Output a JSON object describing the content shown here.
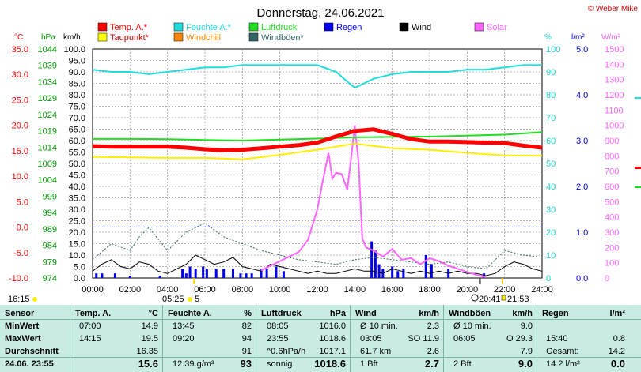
{
  "title": "Donnerstag, 24.06.2021",
  "copyright": "© Weber Mike",
  "legend": [
    {
      "label": "Temp. A.*",
      "color": "#ff0000"
    },
    {
      "label": "Feuchte A.*",
      "color": "#22dddd"
    },
    {
      "label": "Luftdruck",
      "color": "#22dd22"
    },
    {
      "label": "Regen",
      "color": "#0000ee"
    },
    {
      "label": "Wind",
      "color": "#000000"
    },
    {
      "label": "Solar",
      "color": "#ff66ff"
    },
    {
      "label": "Taupunkt*",
      "color": "#ffff00"
    },
    {
      "label": "Windchill",
      "color": "#ff8800"
    },
    {
      "label": "Windböen*",
      "color": "#336666"
    }
  ],
  "chart_data": {
    "type": "line",
    "x_ticks": [
      "00:00",
      "02:00",
      "04:00",
      "06:00",
      "08:00",
      "10:00",
      "12:00",
      "14:00",
      "16:00",
      "18:00",
      "20:00",
      "22:00",
      "24:00"
    ],
    "axes": {
      "temp": {
        "unit": "°C",
        "color": "#ff0000",
        "ticks": [
          "35.0",
          "30.0",
          "25.0",
          "20.0",
          "15.0",
          "10.0",
          "5.0",
          "0.0",
          "-5.0",
          "-10.0"
        ],
        "range": [
          -10,
          35
        ]
      },
      "press": {
        "unit": "hPa",
        "color": "#009900",
        "ticks": [
          "1044",
          "1039",
          "1034",
          "1029",
          "1024",
          "1019",
          "1014",
          "1009",
          "1004",
          "999",
          "994",
          "989",
          "984",
          "979",
          "974"
        ],
        "range": [
          974,
          1044
        ]
      },
      "wind": {
        "unit": "km/h",
        "color": "#000000",
        "ticks": [
          "100.0",
          "95.0",
          "90.0",
          "85.0",
          "80.0",
          "75.0",
          "70.0",
          "65.0",
          "60.0",
          "55.0",
          "50.0",
          "45.0",
          "40.0",
          "35.0",
          "30.0",
          "25.0",
          "20.0",
          "15.0",
          "10.0",
          "5.0",
          "0.0"
        ],
        "range": [
          0,
          100
        ]
      },
      "hum": {
        "unit": "%",
        "color": "#22cccc",
        "ticks": [
          "100",
          "90",
          "80",
          "70",
          "60",
          "50",
          "40",
          "30",
          "20",
          "10",
          "0"
        ],
        "range": [
          0,
          100
        ]
      },
      "rain": {
        "unit": "l/m²",
        "color": "#0000cc",
        "ticks": [
          "5.0",
          "4.0",
          "3.0",
          "2.0",
          "1.0",
          "0.0"
        ],
        "range": [
          0,
          5
        ]
      },
      "solar": {
        "unit": "W/m²",
        "color": "#ff66ff",
        "ticks": [
          "1500",
          "1400",
          "1300",
          "1200",
          "1100",
          "1000",
          "900",
          "800",
          "700",
          "600",
          "500",
          "400",
          "300",
          "200",
          "100",
          "0"
        ],
        "range": [
          0,
          1500
        ]
      }
    },
    "series": [
      {
        "name": "Temp. A.*",
        "axis": "temp",
        "x": [
          0,
          1,
          2,
          3,
          4,
          5,
          6,
          7,
          8,
          9,
          10,
          11,
          12,
          13,
          14,
          15,
          16,
          17,
          18,
          19,
          20,
          21,
          22,
          23,
          24
        ],
        "y": [
          15.9,
          15.8,
          15.8,
          15.8,
          15.8,
          15.6,
          15.3,
          15.1,
          15.2,
          15.5,
          15.8,
          16.1,
          16.6,
          17.8,
          18.9,
          19.2,
          18.3,
          17.3,
          16.8,
          16.8,
          16.7,
          16.6,
          16.5,
          16.0,
          15.6
        ]
      },
      {
        "name": "Feuchte A.*",
        "axis": "hum",
        "x": [
          0,
          1,
          2,
          3,
          4,
          5,
          6,
          7,
          8,
          9,
          10,
          11,
          12,
          13,
          14,
          15,
          16,
          17,
          18,
          19,
          20,
          21,
          22,
          23,
          24
        ],
        "y": [
          91,
          90,
          90,
          89,
          90,
          91,
          92,
          92,
          93,
          93,
          93,
          93,
          93,
          90,
          83,
          87,
          89,
          90,
          90,
          90,
          91,
          91,
          92,
          93,
          93
        ],
        "dashed": true
      },
      {
        "name": "Luftdruck",
        "axis": "press",
        "x": [
          0,
          2,
          4,
          6,
          8,
          10,
          12,
          14,
          16,
          18,
          20,
          22,
          24
        ],
        "y": [
          1016.5,
          1016.5,
          1016.4,
          1016.2,
          1016.0,
          1016.3,
          1016.6,
          1017.0,
          1017.1,
          1017.2,
          1017.5,
          1017.8,
          1018.6
        ]
      },
      {
        "name": "Taupunkt*",
        "axis": "temp",
        "x": [
          0,
          2,
          4,
          6,
          8,
          10,
          12,
          14,
          16,
          18,
          20,
          22,
          24
        ],
        "y": [
          13.8,
          13.7,
          13.6,
          13.6,
          13.3,
          14.2,
          15.2,
          16.4,
          15.5,
          15.2,
          14.6,
          14.1,
          14.0
        ]
      },
      {
        "name": "Solar",
        "axis": "solar",
        "x": [
          9.0,
          10,
          11,
          11.5,
          12,
          12.3,
          12.6,
          12.8,
          13,
          13.3,
          13.6,
          13.8,
          14,
          14.2,
          14.4,
          14.6,
          15,
          15.5,
          16,
          16.5,
          17,
          17.5,
          18,
          18.5,
          19,
          19.5,
          20,
          20.5,
          21
        ],
        "y": [
          50,
          110,
          170,
          250,
          450,
          640,
          820,
          650,
          690,
          680,
          580,
          780,
          1000,
          760,
          260,
          200,
          180,
          140,
          190,
          120,
          130,
          90,
          130,
          110,
          80,
          60,
          40,
          20,
          5
        ]
      }
    ],
    "wind_series": {
      "name": "Wind",
      "axis": "wind",
      "x": [
        0,
        0.5,
        1,
        1.5,
        2,
        2.5,
        3,
        3.5,
        4,
        4.5,
        5,
        5.5,
        6,
        6.5,
        7,
        7.5,
        8,
        8.5,
        9,
        9.5,
        10,
        10.5,
        11,
        11.5,
        12,
        12.5,
        13,
        13.5,
        14,
        14.5,
        15,
        15.5,
        16,
        16.5,
        17,
        17.5,
        18,
        18.5,
        19,
        19.5,
        20,
        20.5,
        21,
        21.5,
        22,
        22.5,
        23,
        23.5,
        24
      ],
      "y": [
        3,
        6,
        8,
        5,
        4,
        7,
        6,
        3,
        2,
        4,
        6,
        10,
        8,
        6,
        7,
        9,
        5,
        4,
        3,
        6,
        5,
        4,
        3,
        2,
        3,
        2,
        2,
        3,
        4,
        3,
        3,
        2,
        4,
        3,
        2,
        3,
        2,
        3,
        2,
        3,
        2,
        2,
        1,
        2,
        5,
        7,
        6,
        4,
        3
      ]
    },
    "gust_series": {
      "name": "Windböen*",
      "axis": "wind",
      "x": [
        0,
        1,
        2,
        2.5,
        3,
        3.5,
        4,
        5,
        6,
        7,
        8,
        9,
        10,
        11,
        12,
        13,
        14,
        15,
        16,
        17,
        18,
        19,
        20,
        21,
        22,
        23,
        24
      ],
      "y": [
        8,
        15,
        12,
        18,
        22,
        17,
        12,
        20,
        24,
        18,
        15,
        12,
        10,
        8,
        7,
        6,
        8,
        9,
        8,
        7,
        6,
        7,
        5,
        4,
        12,
        10,
        9
      ],
      "dashed": true
    },
    "rain_bars": {
      "name": "Regen",
      "axis": "rain",
      "x": [
        0.2,
        0.5,
        1.2,
        2.0,
        3.6,
        4.8,
        5.0,
        5.2,
        5.5,
        5.9,
        6.1,
        6.6,
        7.0,
        7.5,
        7.9,
        8.2,
        8.5,
        9.0,
        9.3,
        9.8,
        10.2,
        14.9,
        15.1,
        15.3,
        15.5,
        16.0,
        16.3,
        16.6,
        17.8,
        18.1,
        19.0,
        20.9
      ],
      "y": [
        0.1,
        0.1,
        0.1,
        0.05,
        0.05,
        0.2,
        0.1,
        0.25,
        0.2,
        0.25,
        0.2,
        0.2,
        0.2,
        0.2,
        0.1,
        0.1,
        0.1,
        0.2,
        0.2,
        0.25,
        0.15,
        0.8,
        0.6,
        0.3,
        0.2,
        0.25,
        0.15,
        0.2,
        0.5,
        0.3,
        0.2,
        0.1
      ]
    }
  },
  "markers": {
    "sunrise": "05:25",
    "sunset": "21:53",
    "moonrise": "20:41",
    "left_time": "16:15",
    "left_marker": "5"
  },
  "stats": {
    "headers": {
      "sensor": "Sensor",
      "temp": "Temp. A.",
      "temp_unit": "°C",
      "hum": "Feuchte A.",
      "hum_unit": "%",
      "press": "Luftdruck",
      "press_unit": "hPa",
      "wind": "Wind",
      "wind_unit": "km/h",
      "gust": "Windböen",
      "gust_unit": "km/h",
      "rain": "Regen",
      "rain_unit": "l/m²"
    },
    "rows": [
      {
        "label": "MinWert",
        "temp_time": "07:00",
        "temp": "14.9",
        "hum_time": "13:45",
        "hum": "82",
        "press_time": "08:05",
        "press": "1016.0",
        "wind_a": "Ø 10 min.",
        "wind_b": "2.3",
        "gust_a": "Ø 10 min.",
        "gust_b": "9.0",
        "rain_a": "",
        "rain_b": ""
      },
      {
        "label": "MaxWert",
        "temp_time": "14:15",
        "temp": "19.5",
        "hum_time": "09:20",
        "hum": "94",
        "press_time": "23:55",
        "press": "1018.6",
        "wind_a": "03:05",
        "wind_a2": "SO 11.9",
        "wind_b": "",
        "gust_a": "06:05",
        "gust_a2": "O 29.3",
        "gust_b": "",
        "rain_a": "15:40",
        "rain_b": "0.8"
      },
      {
        "label": "Durchschnitt",
        "temp_time": "",
        "temp": "16.35",
        "hum_time": "",
        "hum": "91",
        "press_time": "^0.6hPa/h",
        "press": "1017.1",
        "wind_a": "61.7 km",
        "wind_b": "2.6",
        "gust_a": "",
        "gust_b": "7.9",
        "rain_a": "Gesamt:",
        "rain_b": "14.2"
      },
      {
        "label": "24.06. 23:55",
        "temp_time": "",
        "temp": "15.6",
        "hum_time": "12.39 g/m³",
        "hum": "93",
        "press_time": "sonnig",
        "press": "1018.6",
        "wind_a": "1 Bft",
        "wind_b": "2.7",
        "gust_a": "2 Bft",
        "gust_b": "9.0",
        "rain_a": "14.2 l/m²",
        "rain_b": "0.0"
      }
    ]
  }
}
